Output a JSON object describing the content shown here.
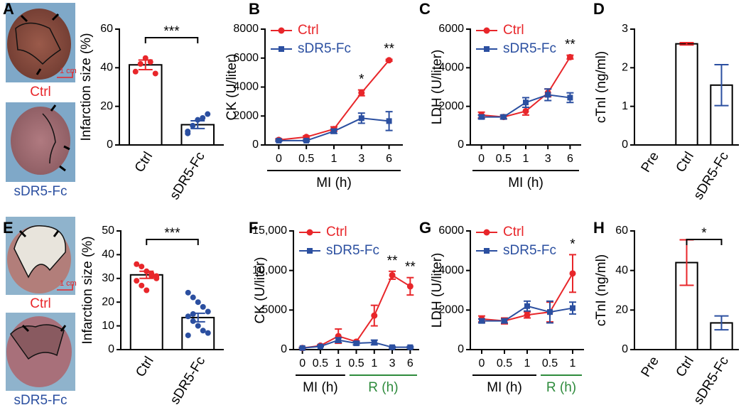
{
  "panel_labels": [
    "A",
    "B",
    "C",
    "D",
    "E",
    "F",
    "G",
    "H"
  ],
  "photos": [
    {
      "labels": [
        "Ctrl",
        "sDR5-Fc"
      ],
      "scale_bar": "1 cm"
    },
    {
      "labels": [
        "Ctrl",
        "sDR5-Fc"
      ],
      "scale_bar": "1 cm"
    }
  ],
  "chart_data": [
    {
      "type": "bar",
      "categories": [
        "Ctrl",
        "sDR5-Fc"
      ],
      "values": [
        41.5,
        10.5
      ],
      "errors": [
        2.5,
        2
      ],
      "colors": [
        "#e8262a",
        "#2b4fa0"
      ],
      "points": [
        [
          38,
          42,
          45,
          43,
          37
        ],
        [
          7,
          10,
          13,
          14,
          16,
          6
        ]
      ],
      "ylabel": "Infarction size (%)",
      "ylim": [
        0,
        60
      ],
      "yticks": [
        0,
        20,
        40,
        60
      ],
      "significance": "***"
    },
    {
      "type": "line",
      "x": [
        "0",
        "0.5",
        "1",
        "3",
        "6"
      ],
      "x_groups": [
        {
          "label": "MI (h)",
          "size": 5,
          "color": "#000000"
        }
      ],
      "ylabel": "CK (U/liter)",
      "ylim": [
        0,
        8000
      ],
      "yticks": [
        0,
        2000,
        4000,
        6000,
        8000
      ],
      "series": [
        {
          "name": "Ctrl",
          "color": "#e8262a",
          "marker": "circle",
          "values": [
            350,
            550,
            1100,
            3600,
            5850
          ],
          "errors": [
            80,
            80,
            150,
            200,
            60
          ]
        },
        {
          "name": "sDR5-Fc",
          "color": "#2b4fa0",
          "marker": "square",
          "values": [
            300,
            300,
            950,
            1850,
            1650
          ],
          "errors": [
            50,
            50,
            150,
            350,
            650
          ]
        }
      ],
      "annotations": [
        {
          "index": 3,
          "text": "*"
        },
        {
          "index": 4,
          "text": "**"
        }
      ]
    },
    {
      "type": "line",
      "x": [
        "0",
        "0.5",
        "1",
        "3",
        "6"
      ],
      "x_groups": [
        {
          "label": "MI (h)",
          "size": 5,
          "color": "#000000"
        }
      ],
      "ylabel": "LDH (U/liter)",
      "ylim": [
        0,
        6000
      ],
      "yticks": [
        0,
        2000,
        4000,
        6000
      ],
      "series": [
        {
          "name": "Ctrl",
          "color": "#e8262a",
          "marker": "circle",
          "values": [
            1550,
            1450,
            1750,
            2700,
            4550
          ],
          "errors": [
            150,
            100,
            200,
            200,
            100
          ]
        },
        {
          "name": "sDR5-Fc",
          "color": "#2b4fa0",
          "marker": "square",
          "values": [
            1450,
            1450,
            2200,
            2600,
            2450
          ],
          "errors": [
            100,
            100,
            250,
            300,
            250
          ]
        }
      ],
      "annotations": [
        {
          "index": 4,
          "text": "**"
        }
      ]
    },
    {
      "type": "bar",
      "categories": [
        "Pre",
        "Ctrl",
        "sDR5-Fc"
      ],
      "values": [
        0,
        2.62,
        1.55
      ],
      "errors": [
        0,
        0.03,
        0.53
      ],
      "colors": [
        "#000000",
        "#e8262a",
        "#2b4fa0"
      ],
      "ylabel": "cTnI (ng/ml)",
      "ylim": [
        0,
        3
      ],
      "yticks": [
        0,
        1,
        2,
        3
      ]
    },
    {
      "type": "bar",
      "categories": [
        "Ctrl",
        "sDR5-Fc"
      ],
      "values": [
        31.5,
        13.5
      ],
      "errors": [
        1.5,
        1.8
      ],
      "colors": [
        "#e8262a",
        "#2b4fa0"
      ],
      "points": [
        [
          36,
          35,
          33,
          31,
          30,
          29,
          27,
          25,
          32,
          31
        ],
        [
          24,
          22,
          20,
          18,
          16,
          14,
          12,
          10,
          8,
          7,
          6,
          15
        ]
      ],
      "ylabel": "Infarction size (%)",
      "ylim": [
        0,
        50
      ],
      "yticks": [
        0,
        10,
        20,
        30,
        40,
        50
      ],
      "significance": "***"
    },
    {
      "type": "line",
      "x": [
        "0",
        "0.5",
        "1",
        "0.5",
        "1",
        "3",
        "6"
      ],
      "x_groups": [
        {
          "label": "MI (h)",
          "size": 3,
          "color": "#000000"
        },
        {
          "label": "R (h)",
          "size": 4,
          "color": "#2e8b3c"
        }
      ],
      "ylabel": "CK (U/liter)",
      "ylim": [
        0,
        15000
      ],
      "yticks": [
        0,
        5000,
        {
          "value": 10000,
          "label": "10,000"
        },
        {
          "value": 15000,
          "label": "15,000"
        }
      ],
      "series": [
        {
          "name": "Ctrl",
          "color": "#e8262a",
          "marker": "circle",
          "values": [
            200,
            500,
            1700,
            1000,
            4300,
            9400,
            8000
          ],
          "errors": [
            100,
            100,
            900,
            100,
            1300,
            500,
            1100
          ]
        },
        {
          "name": "sDR5-Fc",
          "color": "#2b4fa0",
          "marker": "square",
          "values": [
            200,
            400,
            1200,
            800,
            900,
            300,
            300
          ],
          "errors": [
            50,
            50,
            300,
            200,
            300,
            100,
            100
          ]
        }
      ],
      "annotations": [
        {
          "index": 5,
          "text": "**"
        },
        {
          "index": 6,
          "text": "**"
        }
      ]
    },
    {
      "type": "line",
      "x": [
        "0",
        "0.5",
        "1",
        "0.5",
        "1"
      ],
      "x_groups": [
        {
          "label": "MI (h)",
          "size": 3,
          "color": "#000000"
        },
        {
          "label": "R (h)",
          "size": 2,
          "color": "#2e8b3c"
        }
      ],
      "ylabel": "LDH (U/liter)",
      "ylim": [
        0,
        6000
      ],
      "yticks": [
        0,
        2000,
        4000,
        6000
      ],
      "series": [
        {
          "name": "Ctrl",
          "color": "#e8262a",
          "marker": "circle",
          "values": [
            1550,
            1450,
            1750,
            1900,
            3850
          ],
          "errors": [
            150,
            150,
            150,
            500,
            950
          ]
        },
        {
          "name": "sDR5-Fc",
          "color": "#2b4fa0",
          "marker": "square",
          "values": [
            1450,
            1450,
            2200,
            1900,
            2100
          ],
          "errors": [
            100,
            100,
            250,
            550,
            300
          ]
        }
      ],
      "annotations": [
        {
          "index": 4,
          "text": "*"
        }
      ]
    },
    {
      "type": "bar",
      "categories": [
        "Pre",
        "Ctrl",
        "sDR5-Fc"
      ],
      "values": [
        0,
        44,
        13.5
      ],
      "errors": [
        0,
        11.5,
        3.5
      ],
      "colors": [
        "#000000",
        "#e8262a",
        "#2b4fa0"
      ],
      "ylabel": "cTnI (ng/ml)",
      "ylim": [
        0,
        60
      ],
      "yticks": [
        0,
        20,
        40,
        60
      ],
      "significance": "*"
    }
  ]
}
